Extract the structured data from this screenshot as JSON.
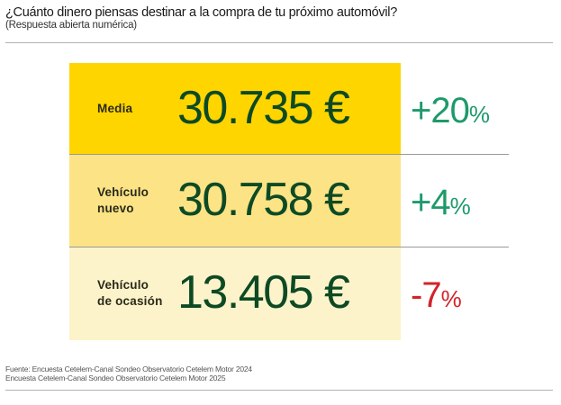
{
  "title": "¿Cuánto dinero piensas destinar a la compra de tu próximo automóvil?",
  "subtitle": "(Respuesta abierta numérica)",
  "chart_data": {
    "type": "table",
    "rows": [
      {
        "label_lines": [
          "Media"
        ],
        "value_text": "30.735 €",
        "value": 30735,
        "change_text": "+20",
        "change_unit": "%",
        "change": 20,
        "bg": "#FFD500",
        "change_color": "#1E9A6A"
      },
      {
        "label_lines": [
          "Vehículo",
          "nuevo"
        ],
        "value_text": "30.758 €",
        "value": 30758,
        "change_text": "+4",
        "change_unit": "%",
        "change": 4,
        "bg": "#FCE385",
        "change_color": "#1E9A6A"
      },
      {
        "label_lines": [
          "Vehículo",
          "de ocasión"
        ],
        "value_text": "13.405 €",
        "value": 13405,
        "change_text": "-7",
        "change_unit": "%",
        "change": -7,
        "bg": "#FDF3CB",
        "change_color": "#D2232A"
      }
    ]
  },
  "source": [
    "Fuente: Encuesta Cetelem-Canal Sondeo Observatorio Cetelem Motor 2024",
    "Encuesta Cetelem-Canal Sondeo Observatorio Cetelem Motor 2025"
  ]
}
